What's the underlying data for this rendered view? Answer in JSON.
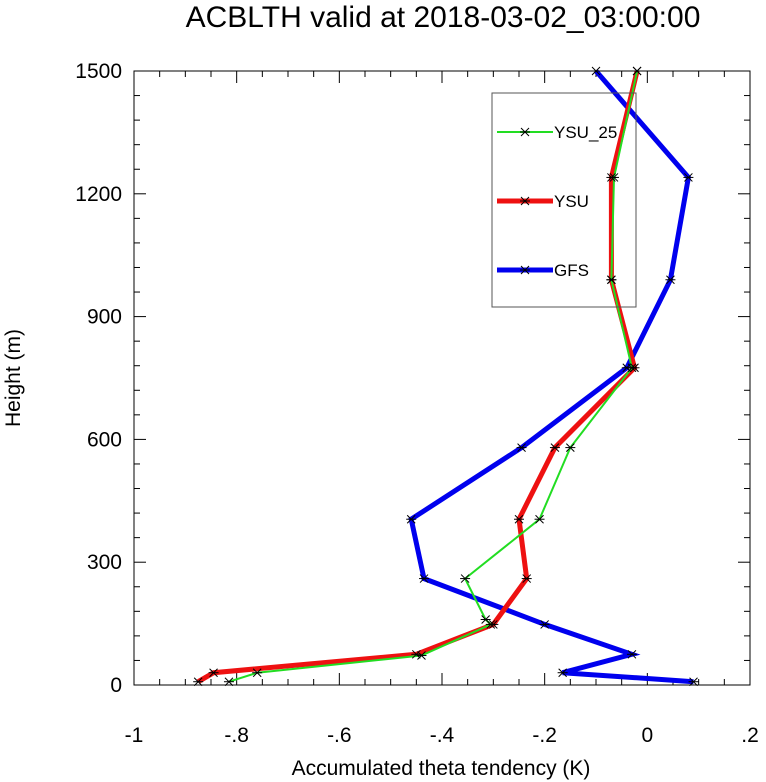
{
  "chart_data": {
    "type": "line",
    "title": "ACBLTH valid at 2018-03-02_03:00:00",
    "xlabel": "Accumulated theta tendency (K)",
    "ylabel": "Height (m)",
    "xlim": [
      -1,
      0.2
    ],
    "ylim": [
      0,
      1500
    ],
    "x_ticks": [
      -1,
      -0.8,
      -0.6,
      -0.4,
      -0.2,
      0,
      0.2
    ],
    "x_tick_labels": [
      "-1",
      "-.8",
      "-.6",
      "-.4",
      "-.2",
      "0",
      ".2"
    ],
    "y_ticks": [
      0,
      300,
      600,
      900,
      1200,
      1500
    ],
    "y_tick_labels": [
      "0",
      "300",
      "600",
      "900",
      "1200",
      "1500"
    ],
    "legend_position": "top-right",
    "grid": false,
    "series": [
      {
        "name": "YSU_25",
        "color": "#22dd22",
        "width": 2,
        "points": [
          [
            -0.815,
            8
          ],
          [
            -0.76,
            30
          ],
          [
            -0.44,
            72
          ],
          [
            -0.305,
            148
          ],
          [
            -0.315,
            160
          ],
          [
            -0.355,
            260
          ],
          [
            -0.21,
            405
          ],
          [
            -0.15,
            580
          ],
          [
            -0.03,
            775
          ],
          [
            -0.07,
            990
          ],
          [
            -0.065,
            1240
          ],
          [
            -0.02,
            1500
          ]
        ]
      },
      {
        "name": "YSU",
        "color": "#ee1111",
        "width": 5,
        "points": [
          [
            -0.875,
            8
          ],
          [
            -0.845,
            30
          ],
          [
            -0.45,
            75
          ],
          [
            -0.3,
            148
          ],
          [
            -0.235,
            260
          ],
          [
            -0.25,
            405
          ],
          [
            -0.18,
            580
          ],
          [
            -0.025,
            775
          ],
          [
            -0.07,
            990
          ],
          [
            -0.07,
            1240
          ],
          [
            -0.02,
            1500
          ]
        ]
      },
      {
        "name": "GFS",
        "color": "#0000ee",
        "width": 5,
        "points": [
          [
            0.09,
            8
          ],
          [
            -0.165,
            30
          ],
          [
            -0.03,
            75
          ],
          [
            -0.2,
            148
          ],
          [
            -0.435,
            260
          ],
          [
            -0.46,
            405
          ],
          [
            -0.245,
            580
          ],
          [
            -0.04,
            775
          ],
          [
            0.045,
            990
          ],
          [
            0.08,
            1240
          ],
          [
            -0.1,
            1500
          ]
        ]
      }
    ]
  }
}
